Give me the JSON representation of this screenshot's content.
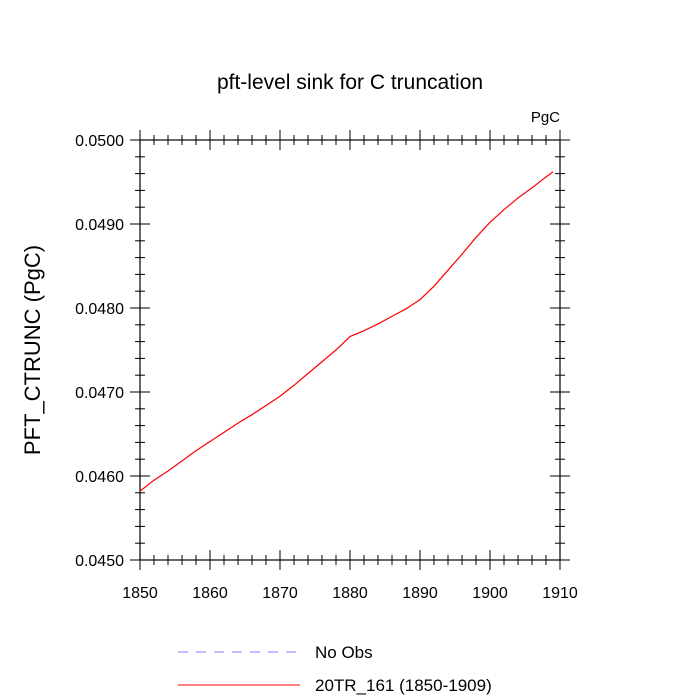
{
  "chart_data": {
    "type": "line",
    "title": "pft-level sink for C truncation",
    "units_label": "PgC",
    "xlabel": "",
    "ylabel": "PFT_CTRUNC  (PgC)",
    "xlim": [
      1850,
      1910
    ],
    "ylim": [
      0.045,
      0.05
    ],
    "x_ticks": [
      1850,
      1860,
      1870,
      1880,
      1890,
      1900,
      1910
    ],
    "x_tick_labels": [
      "1850",
      "1860",
      "1870",
      "1880",
      "1890",
      "1900",
      "1910"
    ],
    "y_ticks": [
      0.045,
      0.046,
      0.047,
      0.048,
      0.049,
      0.05
    ],
    "y_tick_labels": [
      "0.0450",
      "0.0460",
      "0.0470",
      "0.0480",
      "0.0490",
      "0.0500"
    ],
    "grid": false,
    "legend_position": "bottom",
    "legend": [
      {
        "label": "No Obs",
        "color": "#8080ff",
        "dash": "dashed"
      },
      {
        "label": "20TR_161 (1850-1909)",
        "color": "#ff0000",
        "dash": "solid"
      }
    ],
    "series": [
      {
        "name": "20TR_161 (1850-1909)",
        "color": "#ff0000",
        "x": [
          1850,
          1852,
          1854,
          1856,
          1858,
          1860,
          1862,
          1864,
          1866,
          1868,
          1870,
          1872,
          1874,
          1876,
          1878,
          1880,
          1882,
          1884,
          1886,
          1888,
          1890,
          1892,
          1894,
          1896,
          1898,
          1900,
          1902,
          1904,
          1906,
          1908,
          1909
        ],
        "y": [
          0.04582,
          0.04595,
          0.04606,
          0.04618,
          0.0463,
          0.04641,
          0.04652,
          0.04663,
          0.04673,
          0.04684,
          0.04695,
          0.04708,
          0.04722,
          0.04736,
          0.0475,
          0.04766,
          0.04773,
          0.04781,
          0.0479,
          0.04799,
          0.0481,
          0.04826,
          0.04845,
          0.04864,
          0.04884,
          0.04902,
          0.04917,
          0.04931,
          0.04943,
          0.04956,
          0.04962
        ]
      }
    ]
  }
}
